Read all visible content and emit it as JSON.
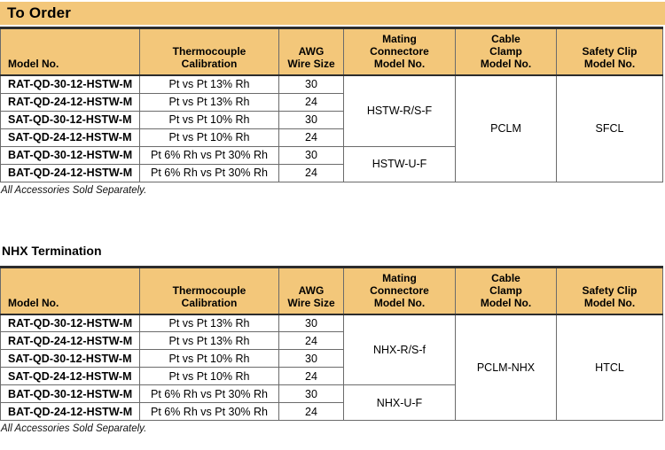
{
  "colors": {
    "header_bg": "#F3C77A",
    "border_gray": "#6B6B6B",
    "border_dark": "#2D2D2D"
  },
  "columns": {
    "model": "Model No.",
    "calibration": "Thermocouple\nCalibration",
    "awg": "AWG\nWire Size",
    "mating": "Mating\nConnectore\nModel No.",
    "cable": "Cable\nClamp\nModel No.",
    "safety": "Safety Clip\nModel No."
  },
  "sections": [
    {
      "title": "To Order",
      "footnote": "All Accessories Sold Separately.",
      "table": {
        "rows": [
          {
            "model": "RAT-QD-30-12-HSTW-M",
            "calibration": "Pt vs Pt 13% Rh",
            "awg": "30"
          },
          {
            "model": "RAT-QD-24-12-HSTW-M",
            "calibration": "Pt vs Pt 13% Rh",
            "awg": "24"
          },
          {
            "model": "SAT-QD-30-12-HSTW-M",
            "calibration": "Pt vs Pt 10% Rh",
            "awg": "30"
          },
          {
            "model": "SAT-QD-24-12-HSTW-M",
            "calibration": "Pt vs Pt 10% Rh",
            "awg": "24"
          },
          {
            "model": "BAT-QD-30-12-HSTW-M",
            "calibration": "Pt 6% Rh vs Pt 30% Rh",
            "awg": "30"
          },
          {
            "model": "BAT-QD-24-12-HSTW-M",
            "calibration": "Pt 6% Rh vs Pt 30% Rh",
            "awg": "24"
          }
        ],
        "mating_groups": [
          {
            "label": "HSTW-R/S-F",
            "rowspan": 4
          },
          {
            "label": "HSTW-U-F",
            "rowspan": 2
          }
        ],
        "cable_clamp": "PCLM",
        "safety_clip": "SFCL"
      }
    },
    {
      "title": "NHX Termination",
      "footnote": "All Accessories Sold Separately.",
      "table": {
        "rows": [
          {
            "model": "RAT-QD-30-12-HSTW-M",
            "calibration": "Pt vs Pt 13% Rh",
            "awg": "30"
          },
          {
            "model": "RAT-QD-24-12-HSTW-M",
            "calibration": "Pt vs Pt 13% Rh",
            "awg": "24"
          },
          {
            "model": "SAT-QD-30-12-HSTW-M",
            "calibration": "Pt vs Pt 10% Rh",
            "awg": "30"
          },
          {
            "model": "SAT-QD-24-12-HSTW-M",
            "calibration": "Pt vs Pt 10% Rh",
            "awg": "24"
          },
          {
            "model": "BAT-QD-30-12-HSTW-M",
            "calibration": "Pt 6% Rh vs Pt 30% Rh",
            "awg": "30"
          },
          {
            "model": "BAT-QD-24-12-HSTW-M",
            "calibration": "Pt 6% Rh vs Pt 30% Rh",
            "awg": "24"
          }
        ],
        "mating_groups": [
          {
            "label": "NHX-R/S-f",
            "rowspan": 4
          },
          {
            "label": "NHX-U-F",
            "rowspan": 2
          }
        ],
        "cable_clamp": "PCLM-NHX",
        "safety_clip": "HTCL"
      }
    }
  ]
}
